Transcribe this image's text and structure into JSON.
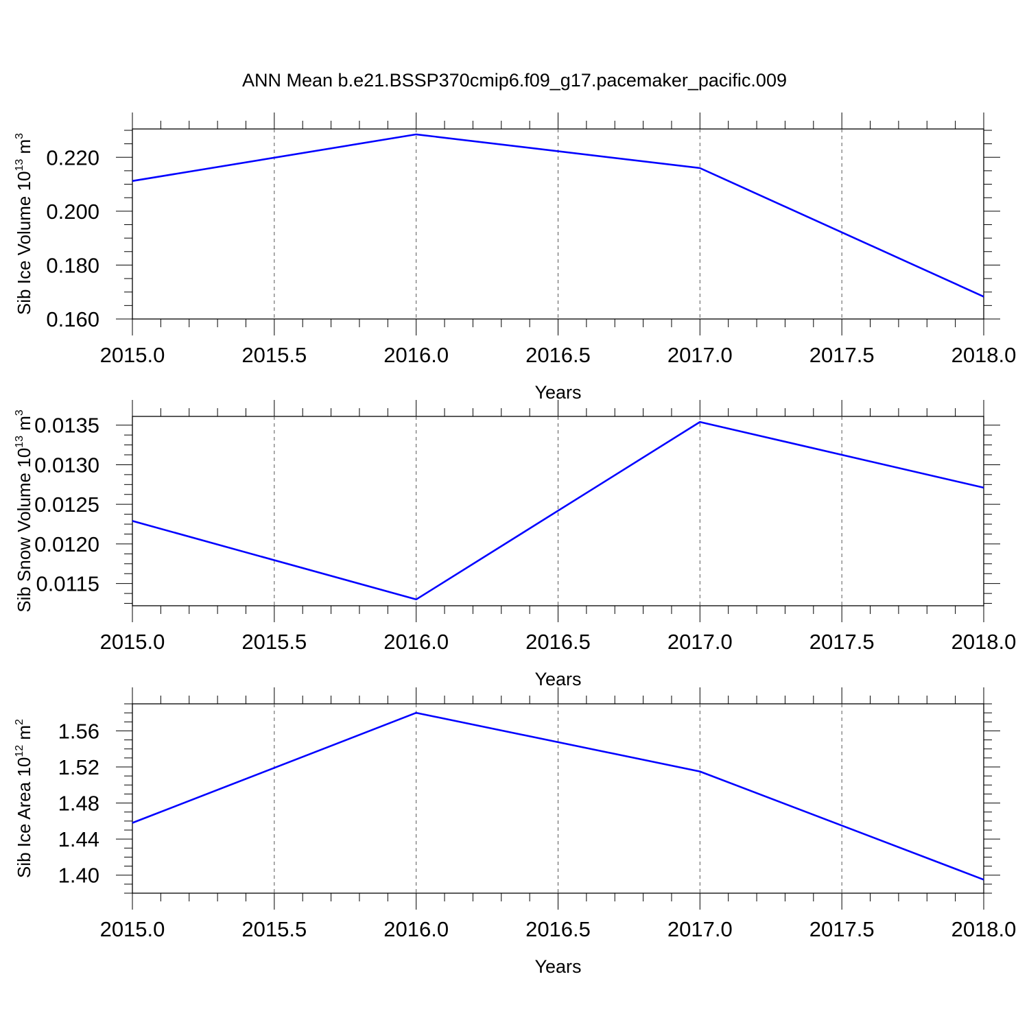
{
  "title": "ANN Mean b.e21.BSSP370cmip6.f09_g17.pacemaker_pacific.009",
  "colors": {
    "line": "#0000ff",
    "axis": "#000000",
    "grid": "#555555"
  },
  "chart_data": [
    {
      "type": "line",
      "xlabel": "Years",
      "ylabel": {
        "text": "Sib Ice Volume 10",
        "exp": "13",
        "unit": " m",
        "unit_exp": "3"
      },
      "xlim": [
        2015.0,
        2018.0
      ],
      "ylim": [
        0.16,
        0.2305
      ],
      "x_ticks": [
        "2015.0",
        "2015.5",
        "2016.0",
        "2016.5",
        "2017.0",
        "2017.5",
        "2018.0"
      ],
      "y_ticks": [
        "0.160",
        "0.180",
        "0.200",
        "0.220"
      ],
      "x": [
        2015,
        2016,
        2017,
        2018
      ],
      "values": [
        0.2112,
        0.2285,
        0.216,
        0.1683
      ],
      "grid": "x-dashed"
    },
    {
      "type": "line",
      "xlabel": "Years",
      "ylabel": {
        "text": "Sib Snow Volume 10",
        "exp": "13",
        "unit": " m",
        "unit_exp": "3"
      },
      "xlim": [
        2015.0,
        2018.0
      ],
      "ylim": [
        0.01122,
        0.01361
      ],
      "x_ticks": [
        "2015.0",
        "2015.5",
        "2016.0",
        "2016.5",
        "2017.0",
        "2017.5",
        "2018.0"
      ],
      "y_ticks": [
        "0.0115",
        "0.0120",
        "0.0125",
        "0.0130",
        "0.0135"
      ],
      "x": [
        2015,
        2016,
        2017,
        2018
      ],
      "values": [
        0.01229,
        0.0113,
        0.01354,
        0.01271
      ],
      "grid": "x-dashed"
    },
    {
      "type": "line",
      "xlabel": "Years",
      "ylabel": {
        "text": "Sib Ice Area 10",
        "exp": "12",
        "unit": " m",
        "unit_exp": "2"
      },
      "xlim": [
        2015.0,
        2018.0
      ],
      "ylim": [
        1.38,
        1.59
      ],
      "x_ticks": [
        "2015.0",
        "2015.5",
        "2016.0",
        "2016.5",
        "2017.0",
        "2017.5",
        "2018.0"
      ],
      "y_ticks": [
        "1.40",
        "1.44",
        "1.48",
        "1.52",
        "1.56"
      ],
      "x": [
        2015,
        2016,
        2017,
        2018
      ],
      "values": [
        1.458,
        1.58,
        1.515,
        1.395
      ],
      "grid": "x-dashed"
    }
  ]
}
